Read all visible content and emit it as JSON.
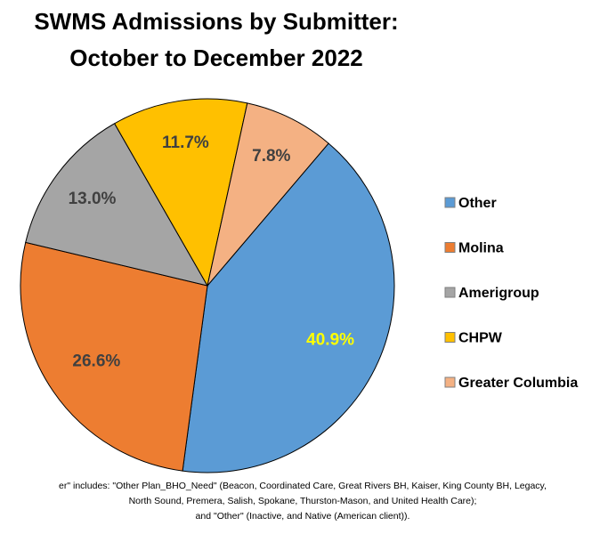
{
  "chart_data": {
    "type": "pie",
    "title_lines": [
      "SWMS Admissions by Submitter:",
      "October to December 2022"
    ],
    "categories": [
      "Other",
      "Molina",
      "Amerigroup",
      "CHPW",
      "Greater Columbia"
    ],
    "values": [
      40.9,
      26.6,
      13.0,
      11.7,
      7.8
    ],
    "value_labels": [
      "40.9%",
      "26.6%",
      "13.0%",
      "11.7%",
      "7.8%"
    ],
    "colors": [
      "#5b9bd5",
      "#ed7d31",
      "#a5a5a5",
      "#ffc000",
      "#f4b183"
    ],
    "label_colors": [
      "#ffff00",
      "#404040",
      "#404040",
      "#404040",
      "#404040"
    ],
    "legend": "right",
    "notes": [
      "er\" includes: \"Other Plan_BHO_Need\" (Beacon, Coordinated Care, Great Rivers BH, Kaiser, King County BH, Legacy,",
      "North Sound, Premera, Salish, Spokane, Thurston-Mason, and United Health Care);",
      "and \"Other\" (Inactive, and Native (American client))."
    ]
  }
}
